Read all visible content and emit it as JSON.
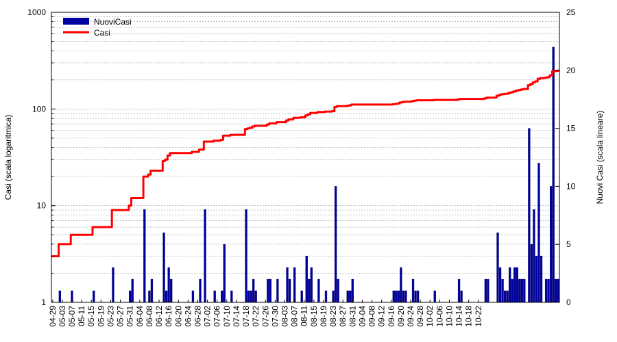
{
  "chart_data": {
    "type": "bar",
    "ylabel_left": "Casi (scala logaritmica)",
    "ylabel_right": "Nuovi Casi (scala lineare)",
    "left_axis": {
      "scale": "log",
      "range": [
        1,
        1000
      ],
      "ticks": [
        "1",
        "10",
        "100",
        "1000"
      ]
    },
    "right_axis": {
      "scale": "linear",
      "range": [
        0,
        25
      ],
      "ticks": [
        "0",
        "5",
        "10",
        "15",
        "20",
        "25"
      ]
    },
    "x_start_date": "2020-04-29",
    "x_tick_labels": [
      "04-29",
      "05-03",
      "05-07",
      "05-11",
      "05-15",
      "05-19",
      "05-23",
      "05-27",
      "05-31",
      "06-04",
      "06-08",
      "06-12",
      "06-16",
      "06-20",
      "06-24",
      "06-28",
      "07-02",
      "07-06",
      "07-10",
      "07-14",
      "07-18",
      "07-22",
      "07-26",
      "07-30",
      "08-03",
      "08-07",
      "08-11",
      "08-15",
      "08-19",
      "08-23",
      "08-27",
      "08-31",
      "09-04",
      "09-08",
      "09-12",
      "09-16",
      "09-20",
      "09-24",
      "09-28",
      "10-02",
      "10-06",
      "10-10",
      "10-14",
      "10-18",
      "10-22"
    ],
    "legend": [
      {
        "name": "NuoviCasi",
        "color": "#0000a0",
        "kind": "bar"
      },
      {
        "name": "Casi",
        "color": "#ff0000",
        "kind": "line"
      }
    ],
    "grid": "horizontal",
    "series": [
      {
        "name": "NuoviCasi",
        "axis": "right",
        "values": [
          0,
          0,
          0,
          1,
          0,
          0,
          0,
          0,
          1,
          0,
          0,
          0,
          0,
          0,
          0,
          0,
          0,
          1,
          0,
          0,
          0,
          0,
          0,
          0,
          0,
          3,
          0,
          0,
          0,
          0,
          0,
          0,
          1,
          2,
          0,
          0,
          0,
          0,
          8,
          0,
          1,
          2,
          0,
          0,
          0,
          0,
          6,
          1,
          3,
          2,
          0,
          0,
          0,
          0,
          0,
          0,
          0,
          0,
          1,
          0,
          0,
          2,
          0,
          8,
          0,
          0,
          0,
          1,
          0,
          0,
          1,
          5,
          0,
          0,
          1,
          0,
          0,
          0,
          0,
          0,
          8,
          1,
          1,
          2,
          1,
          0,
          0,
          0,
          0,
          2,
          2,
          0,
          0,
          2,
          0,
          0,
          0,
          3,
          2,
          0,
          3,
          0,
          0,
          1,
          0,
          4,
          2,
          3,
          0,
          0,
          2,
          0,
          0,
          1,
          0,
          0,
          1,
          10,
          2,
          0,
          0,
          0,
          1,
          1,
          2,
          0,
          0,
          0,
          0,
          0,
          0,
          0,
          0,
          0,
          0,
          0,
          0,
          0,
          0,
          0,
          0,
          1,
          1,
          1,
          3,
          1,
          1,
          0,
          0,
          2,
          1,
          1,
          0,
          0,
          0,
          0,
          0,
          0,
          1,
          0,
          0,
          0,
          0,
          0,
          0,
          0,
          0,
          0,
          2,
          1,
          0,
          0,
          0,
          0,
          0,
          0,
          0,
          0,
          0,
          2,
          2,
          0,
          0,
          0,
          6,
          3,
          2,
          1,
          1,
          3,
          2,
          3,
          3,
          2,
          2,
          2,
          0,
          15,
          5,
          8,
          4,
          12,
          4,
          0,
          2,
          2,
          10,
          22,
          2,
          2
        ]
      },
      {
        "name": "Casi",
        "axis": "left",
        "cumulative_start": 3,
        "values_from": "NuoviCasi"
      }
    ]
  }
}
